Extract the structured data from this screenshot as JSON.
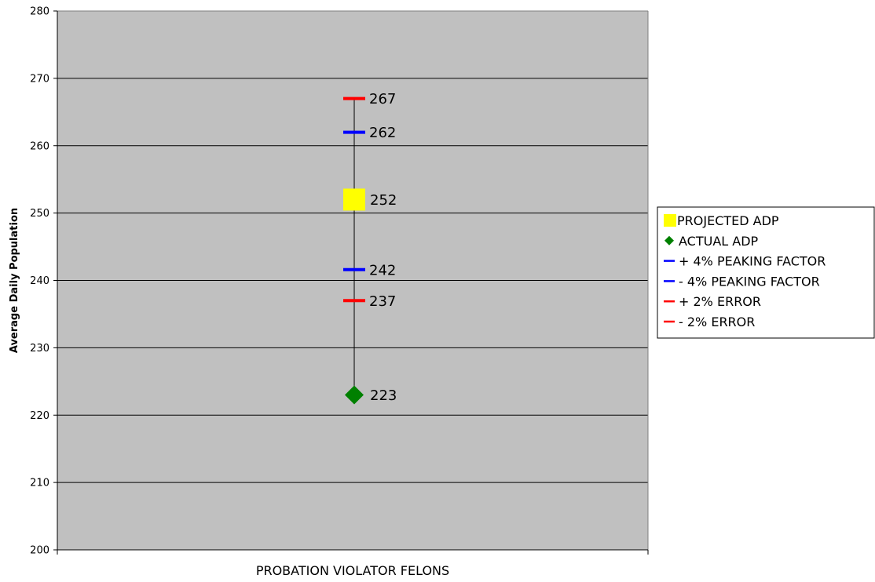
{
  "chart_data": {
    "type": "scatter",
    "ylabel": "Average Daily Population",
    "xlabel": "PROBATION VIOLATOR FELONS",
    "categories": [
      "PROBATION VIOLATOR FELONS"
    ],
    "ylim": [
      200,
      280
    ],
    "yticks": [
      200,
      210,
      220,
      230,
      240,
      250,
      260,
      270,
      280
    ],
    "grid": true,
    "legend_position": "right",
    "colors": {
      "plot_background": "#c0c0c0",
      "projected": "#ffff00",
      "actual": "#008000",
      "peaking": "#0000ff",
      "error": "#ff0000"
    },
    "series": [
      {
        "name": "PROJECTED ADP",
        "marker": "square",
        "color": "#ffff00",
        "value": 252,
        "label": "252"
      },
      {
        "name": "ACTUAL ADP",
        "marker": "diamond",
        "color": "#008000",
        "value": 223,
        "label": "223"
      },
      {
        "name": "+ 4% PEAKING FACTOR",
        "marker": "dash",
        "color": "#0000ff",
        "value": 262,
        "label": "262"
      },
      {
        "name": "- 4% PEAKING FACTOR",
        "marker": "dash",
        "color": "#0000ff",
        "value": 241.6,
        "label": "242"
      },
      {
        "name": "+ 2% ERROR",
        "marker": "dash",
        "color": "#ff0000",
        "value": 267,
        "label": "267"
      },
      {
        "name": "- 2% ERROR",
        "marker": "dash",
        "color": "#ff0000",
        "value": 237,
        "label": "237"
      }
    ]
  }
}
